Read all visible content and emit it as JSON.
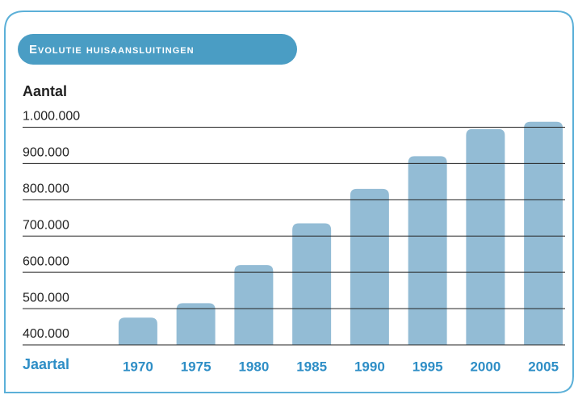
{
  "chart_data": {
    "type": "bar",
    "title": "Evolutie huisaansluitingen",
    "y_label": "Aantal",
    "x_label": "Jaartal",
    "categories": [
      "1970",
      "1975",
      "1980",
      "1985",
      "1990",
      "1995",
      "2000",
      "2005"
    ],
    "values": [
      475000,
      515000,
      620000,
      735000,
      830000,
      920000,
      995000,
      1015000
    ],
    "color": "#93bcd5",
    "ylim": [
      400000,
      1030000
    ],
    "yticks": [
      {
        "value": 400000,
        "label": "400.000"
      },
      {
        "value": 500000,
        "label": "500.000"
      },
      {
        "value": 600000,
        "label": "600.000"
      },
      {
        "value": 700000,
        "label": "700.000"
      },
      {
        "value": 800000,
        "label": "800.000"
      },
      {
        "value": 900000,
        "label": "900.000"
      },
      {
        "value": 1000000,
        "label": "1.000.000"
      }
    ],
    "grid": true
  }
}
